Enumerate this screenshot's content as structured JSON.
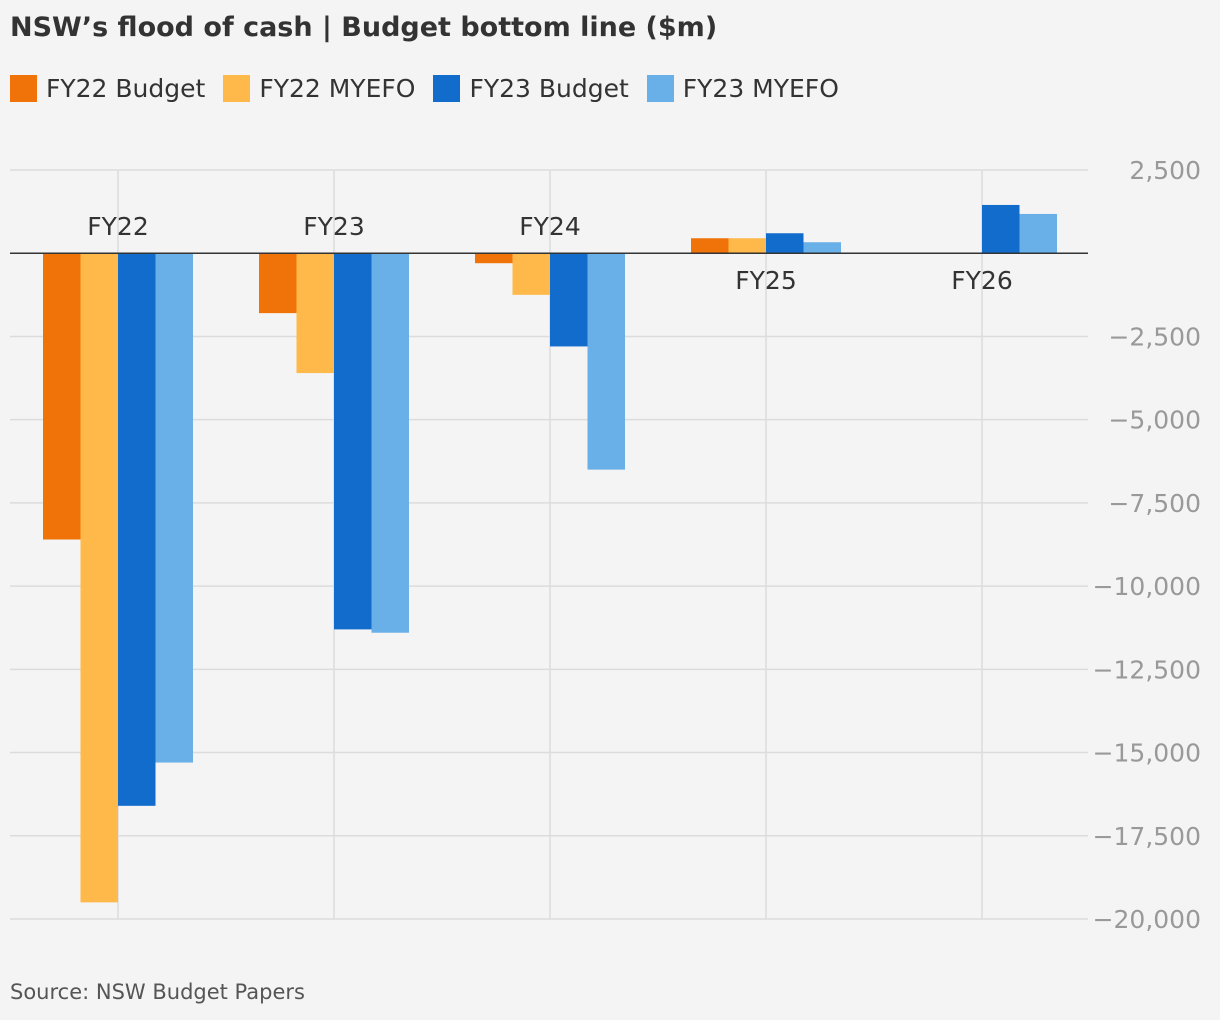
{
  "header": {
    "title": "NSW’s flood of cash | Budget bottom line ($m)"
  },
  "footer": {
    "source": "Source: NSW Budget Papers"
  },
  "colors": {
    "fy22_budget": "#f07309",
    "fy22_myefo": "#ffb84a",
    "fy23_budget": "#116ccc",
    "fy23_myefo": "#69afe8",
    "gridline": "#dcdcdc",
    "zero_line": "#333333",
    "tick_label": "#999999",
    "category_label": "#333333"
  },
  "chart_data": {
    "type": "bar",
    "title": "NSW’s flood of cash | Budget bottom line ($m)",
    "categories": [
      "FY22",
      "FY23",
      "FY24",
      "FY25",
      "FY26"
    ],
    "series": [
      {
        "name": "FY22 Budget",
        "color": "#f07309",
        "values": [
          -8600,
          -1800,
          -300,
          450,
          null
        ]
      },
      {
        "name": "FY22 MYEFO",
        "color": "#ffb84a",
        "values": [
          -19500,
          -3600,
          -1250,
          450,
          null
        ]
      },
      {
        "name": "FY23 Budget",
        "color": "#116ccc",
        "values": [
          -16600,
          -11300,
          -2800,
          600,
          1450
        ]
      },
      {
        "name": "FY23 MYEFO",
        "color": "#69afe8",
        "values": [
          -15300,
          -11400,
          -6500,
          330,
          1180
        ]
      }
    ],
    "ylim": [
      -20000,
      2500
    ],
    "yticks": [
      2500,
      -2500,
      -5000,
      -7500,
      -10000,
      -12500,
      -15000,
      -17500,
      -20000
    ],
    "ytick_labels": [
      "2,500",
      "−2,500",
      "−5,000",
      "−7,500",
      "−10,000",
      "−12,500",
      "−15,000",
      "−17,500",
      "−20,000"
    ],
    "xlabel": "",
    "ylabel": "",
    "grid": true,
    "legend_position": "top-left",
    "y_axis_side": "right"
  }
}
